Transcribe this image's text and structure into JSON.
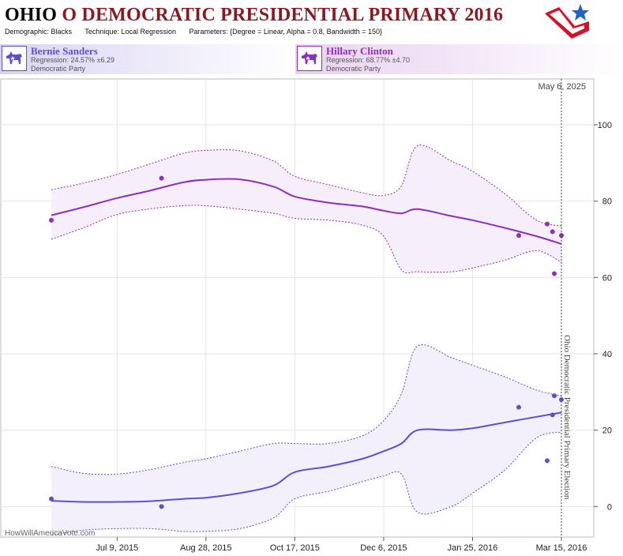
{
  "header": {
    "state": "OHIO",
    "title_rest": "O DEMOCRATIC PRESIDENTIAL PRIMARY 2016",
    "demographic_label": "Demographic:",
    "demographic_value": "Blacks",
    "technique_label": "Technique:",
    "technique_value": "Local Regression",
    "parameters_label": "Parameters:",
    "parameters_value": "{Degree = Linear, Alpha = 0.8, Bandwidth = 150}"
  },
  "candidates": [
    {
      "name": "Bernie Sanders",
      "regression": "Regression: 24.57% ±6.29",
      "party": "Democratic Party",
      "icon": "donkey-icon",
      "color": "#5b4fd6"
    },
    {
      "name": "Hillary Clinton",
      "regression": "Regression: 68.77% ±4.70",
      "party": "Democratic Party",
      "icon": "donkey-icon",
      "color": "#8f2dbd"
    }
  ],
  "footer": {
    "credit": "HowWillAmericaVote.com"
  },
  "chart_data": {
    "type": "line",
    "x_axis": {
      "start": "2015-06-02",
      "end": "2016-03-15",
      "ticks": [
        "Jul 9, 2015",
        "Aug 28, 2015",
        "Oct 17, 2015",
        "Dec 6, 2015",
        "Jan 25, 2016",
        "Mar 15, 2016"
      ]
    },
    "y_axis": {
      "range": [
        -8,
        112
      ],
      "ticks": [
        0,
        20,
        40,
        60,
        80,
        100
      ],
      "position": "right"
    },
    "current_date_label": "May 6, 2025",
    "event_label": "Ohio Democratic Presidential Primary Election",
    "grid": true,
    "series": [
      {
        "name": "Hillary Clinton",
        "color": "#8f2dbd",
        "band_color": "#f6eefa",
        "x": [
          "2015-06-02",
          "2015-06-20",
          "2015-07-09",
          "2015-07-28",
          "2015-08-15",
          "2015-08-28",
          "2015-09-16",
          "2015-10-05",
          "2015-10-17",
          "2015-11-05",
          "2015-11-24",
          "2015-12-06",
          "2015-12-16",
          "2015-12-25",
          "2016-01-13",
          "2016-01-25",
          "2016-02-12",
          "2016-03-01",
          "2016-03-15"
        ],
        "values": [
          76.3,
          78.4,
          80.8,
          82.8,
          84.9,
          85.6,
          85.7,
          83.8,
          81.2,
          79.6,
          78.6,
          77.5,
          76.8,
          77.9,
          76.1,
          75.0,
          73.0,
          70.8,
          68.8
        ],
        "upper": [
          83,
          84.7,
          87,
          89.8,
          92.5,
          93.3,
          93.2,
          90.5,
          86.5,
          84.3,
          82.2,
          81.5,
          84,
          94.5,
          90.5,
          87.8,
          82,
          75,
          73.5
        ],
        "lower": [
          70,
          73,
          76.5,
          78,
          78.8,
          78.8,
          77.9,
          76.8,
          75.5,
          75,
          73.7,
          70.8,
          62,
          61.5,
          61.5,
          62.5,
          64.5,
          67,
          64
        ],
        "points": [
          {
            "x": "2015-06-02",
            "y": 75
          },
          {
            "x": "2015-08-03",
            "y": 86
          },
          {
            "x": "2016-02-20",
            "y": 71
          },
          {
            "x": "2016-03-07",
            "y": 74
          },
          {
            "x": "2016-03-10",
            "y": 72
          },
          {
            "x": "2016-03-11",
            "y": 61
          },
          {
            "x": "2016-03-15",
            "y": 71
          }
        ]
      },
      {
        "name": "Bernie Sanders",
        "color": "#5b4fd6",
        "band_color": "#f3f0fb",
        "x": [
          "2015-06-02",
          "2015-06-20",
          "2015-07-09",
          "2015-07-28",
          "2015-08-15",
          "2015-08-28",
          "2015-09-16",
          "2015-10-05",
          "2015-10-17",
          "2015-11-05",
          "2015-11-24",
          "2015-12-06",
          "2015-12-16",
          "2015-12-25",
          "2016-01-13",
          "2016-01-25",
          "2016-02-12",
          "2016-03-01",
          "2016-03-15"
        ],
        "values": [
          1.5,
          1.2,
          1.2,
          1.4,
          2.0,
          2.3,
          3.5,
          5.5,
          9.0,
          10.5,
          12.5,
          14.5,
          16.5,
          20.0,
          20.0,
          20.5,
          22.0,
          23.5,
          24.6
        ],
        "upper": [
          10.5,
          8.7,
          8.5,
          9.7,
          11.5,
          12.5,
          14.5,
          16.5,
          16.5,
          16.5,
          18.5,
          22.5,
          29.5,
          42,
          39,
          37,
          34,
          30.5,
          29
        ],
        "lower": [
          -7.5,
          -6.2,
          -5.8,
          -5.8,
          -6.5,
          -6.5,
          -5.8,
          -3,
          2,
          4,
          6.5,
          8,
          8.5,
          -1.5,
          0,
          3.5,
          9.5,
          18,
          19.5
        ],
        "points": [
          {
            "x": "2015-06-02",
            "y": 2
          },
          {
            "x": "2015-08-03",
            "y": 0
          },
          {
            "x": "2016-02-20",
            "y": 26
          },
          {
            "x": "2016-03-07",
            "y": 12
          },
          {
            "x": "2016-03-10",
            "y": 24
          },
          {
            "x": "2016-03-11",
            "y": 29
          },
          {
            "x": "2016-03-15",
            "y": 28
          }
        ]
      }
    ]
  }
}
